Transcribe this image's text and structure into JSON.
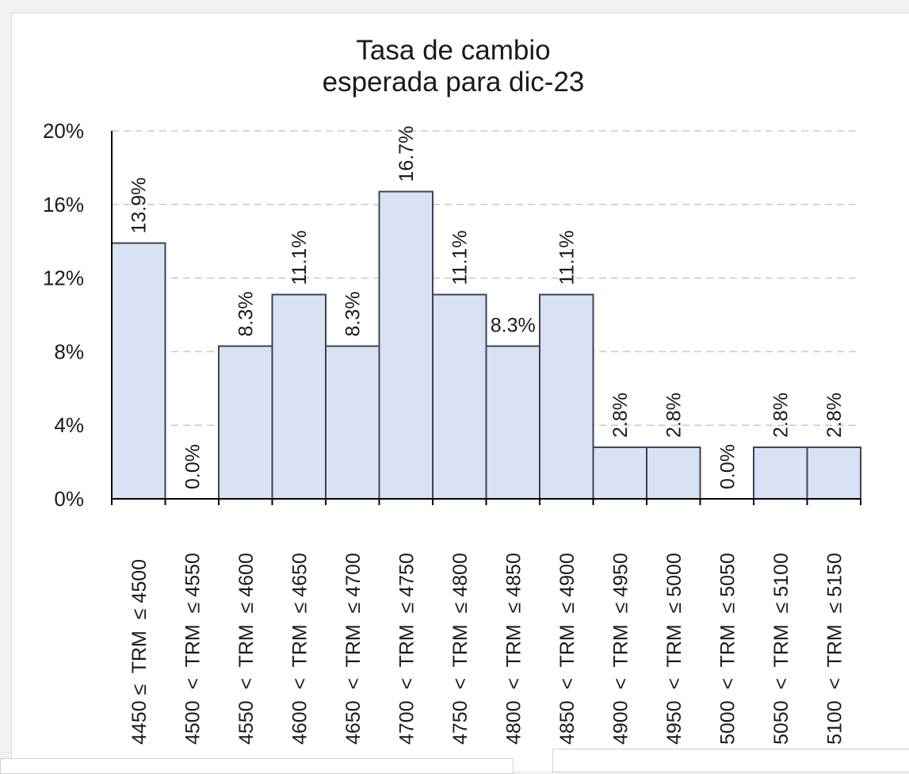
{
  "chart_data": {
    "type": "bar",
    "title_lines": [
      "Tasa de cambio",
      "esperada para dic-23"
    ],
    "categories": [
      "4450 ≤  TRM  ≤ 4500",
      "4500  <  TRM  ≤ 4550",
      "4550  <  TRM  ≤ 4600",
      "4600  <  TRM  ≤ 4650",
      "4650  <  TRM  ≤ 4700",
      "4700  <  TRM  ≤ 4750",
      "4750  <  TRM  ≤ 4800",
      "4800  <  TRM  ≤ 4850",
      "4850  <  TRM  ≤ 4900",
      "4900  <  TRM  ≤ 4950",
      "4950  <  TRM  ≤ 5000",
      "5000  <  TRM  ≤ 5050",
      "5050  <  TRM  ≤ 5100",
      "5100  <  TRM  ≤ 5150"
    ],
    "values": [
      13.9,
      0.0,
      8.3,
      11.1,
      8.3,
      16.7,
      11.1,
      8.3,
      11.1,
      2.8,
      2.8,
      0.0,
      2.8,
      2.8
    ],
    "data_labels": [
      "13.9%",
      "0.0%",
      "8.3%",
      "11.1%",
      "8.3%",
      "16.7%",
      "11.1%",
      "8.3%",
      "11.1%",
      "2.8%",
      "2.8%",
      "0.0%",
      "2.8%",
      "2.8%"
    ],
    "yticks": [
      0,
      4,
      8,
      12,
      16,
      20
    ],
    "ytick_labels": [
      "0%",
      "4%",
      "8%",
      "12%",
      "16%",
      "20%"
    ],
    "ylim": [
      0,
      20
    ],
    "xlabel": "",
    "ylabel": "",
    "grid": true,
    "legend": "none",
    "colors": {
      "bar_fill": "#d9e2f3",
      "bar_stroke": "#3a4457",
      "axis": "#000000",
      "grid": "#c8c8c8",
      "text": "#1a1a1a"
    }
  }
}
